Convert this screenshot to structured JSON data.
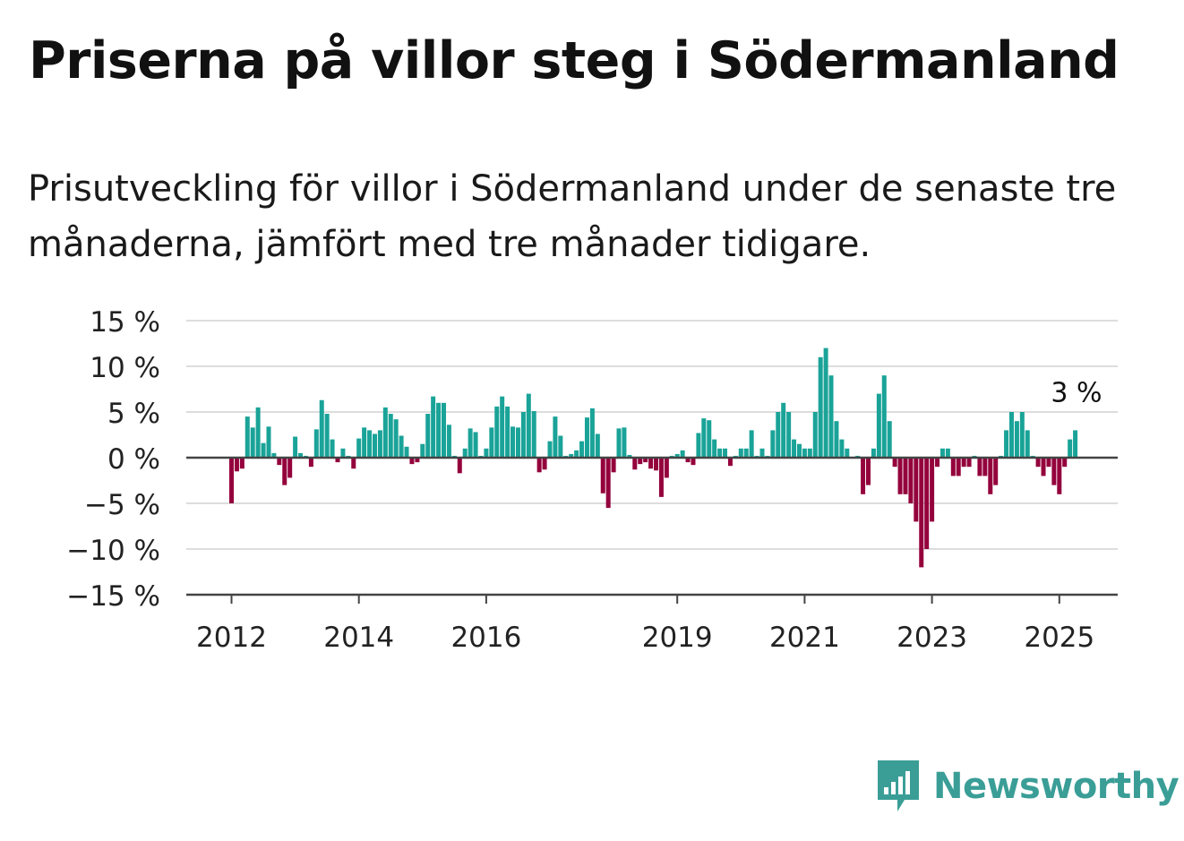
{
  "header": {
    "title": "Priserna på villor steg i Södermanland",
    "subtitle": "Prisutveckling för villor i Södermanland under de senaste tre månaderna, jämfört med tre månader tidigare."
  },
  "logo": {
    "text": "Newsworthy",
    "icon": "bar-chart-icon",
    "color": "#3a9e97"
  },
  "chart_data": {
    "type": "bar",
    "title": "",
    "xlabel": "",
    "ylabel": "",
    "unit": "%",
    "ylim": [
      -15,
      15
    ],
    "yticks": [
      15,
      10,
      5,
      0,
      -5,
      -10,
      -15
    ],
    "ytick_labels": [
      "15 %",
      "10 %",
      "5 %",
      "0 %",
      "−5 %",
      "−10 %",
      "−15 %"
    ],
    "xticks": [
      "2012",
      "2014",
      "2016",
      "2019",
      "2021",
      "2023",
      "2025"
    ],
    "x_start": "2012-01",
    "x_end": "2025-04",
    "grid": true,
    "positive_color": "#1aa398",
    "negative_color": "#94003c",
    "annotation": {
      "text": "3 %",
      "x": "2025-04",
      "y": 3
    },
    "series": [
      {
        "values": [
          -5.0,
          -1.5,
          -1.2,
          4.5,
          3.3,
          5.5,
          1.6,
          3.4,
          0.5,
          -0.8,
          -3.0,
          -2.2,
          2.3,
          0.5,
          0.2,
          -1.0,
          3.1,
          6.3,
          4.8,
          2.0,
          -0.5,
          1.0,
          0.2,
          -1.2,
          2.1,
          3.3,
          3.0,
          2.6,
          3.0,
          5.5,
          4.8,
          4.2,
          2.4,
          1.2,
          -0.7,
          -0.5,
          1.5,
          4.8,
          6.7,
          6.0,
          6.0,
          3.6,
          0.2,
          -1.7,
          1.0,
          3.2,
          2.8,
          0.2,
          1.0,
          3.3,
          5.6,
          6.7,
          5.6,
          3.4,
          3.3,
          5.0,
          7.0,
          5.1,
          -1.6,
          -1.3,
          1.8,
          4.5,
          2.4,
          0.2,
          0.4,
          0.8,
          1.8,
          4.4,
          5.4,
          2.6,
          -3.9,
          -5.5,
          -1.6,
          3.2,
          3.3,
          0.3,
          -1.3,
          -0.7,
          -0.5,
          -1.2,
          -1.4,
          -4.3,
          -2.2,
          0.2,
          0.4,
          0.8,
          -0.5,
          -0.8,
          2.7,
          4.3,
          4.1,
          2.0,
          1.0,
          1.0,
          -0.9,
          0.2,
          1.0,
          1.0,
          3.0,
          0.2,
          1.0,
          0.2,
          3.0,
          5.0,
          6.0,
          5.0,
          2.0,
          1.5,
          1.0,
          1.0,
          5.0,
          11.0,
          12.0,
          9.0,
          4.0,
          2.0,
          1.0,
          0.1,
          0.2,
          -4.0,
          -3.0,
          1.0,
          7.0,
          9.0,
          4.0,
          -1.0,
          -4.0,
          -4.0,
          -5.0,
          -7.0,
          -12.0,
          -10.0,
          -7.0,
          -1.0,
          1.0,
          1.0,
          -2.0,
          -2.0,
          -1.0,
          -1.0,
          0.2,
          -2.0,
          -2.0,
          -4.0,
          -3.0,
          0.2,
          3.0,
          5.0,
          4.0,
          5.0,
          3.0,
          0.2,
          -1.0,
          -2.0,
          -1.0,
          -3.0,
          -4.0,
          -1.0,
          2.0,
          3.0
        ]
      }
    ]
  }
}
